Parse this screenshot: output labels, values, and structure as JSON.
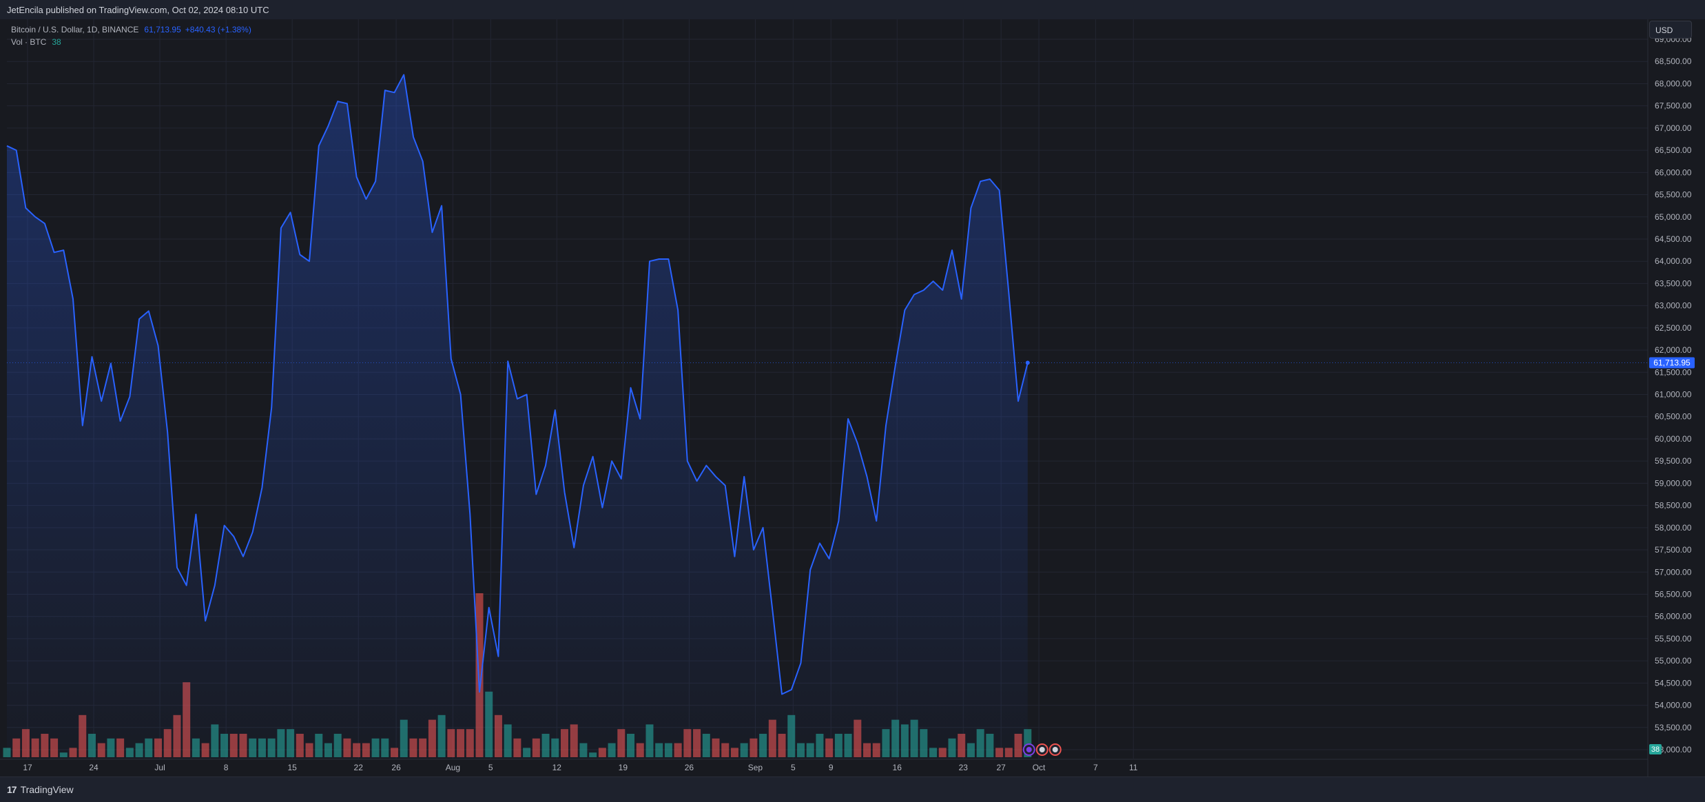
{
  "header": {
    "published": "JetEncila published on TradingView.com, Oct 02, 2024 08:10 UTC"
  },
  "legend": {
    "symbol": "Bitcoin / U.S. Dollar, 1D, BINANCE",
    "last": "61,713.95",
    "change": "+840.43 (+1.38%)",
    "volume_label": "Vol · BTC",
    "volume_value": "38"
  },
  "currency": "USD",
  "brand": {
    "logo": "17",
    "name": "TradingView"
  },
  "price_label": "61,713.95",
  "volume_badge": "38",
  "colors": {
    "line": "#2962ff",
    "up": "#26a69a",
    "down": "#ef5350",
    "bg": "#181a20"
  },
  "chart_data": {
    "type": "line",
    "y_ticks": [
      "53,000.00",
      "53,500.00",
      "54,000.00",
      "54,500.00",
      "55,000.00",
      "55,500.00",
      "56,000.00",
      "56,500.00",
      "57,000.00",
      "57,500.00",
      "58,000.00",
      "58,500.00",
      "59,000.00",
      "59,500.00",
      "60,000.00",
      "60,500.00",
      "61,000.00",
      "61,500.00",
      "62,000.00",
      "62,500.00",
      "63,000.00",
      "63,500.00",
      "64,000.00",
      "64,500.00",
      "65,000.00",
      "65,500.00",
      "66,000.00",
      "66,500.00",
      "67,000.00",
      "67,500.00",
      "68,000.00",
      "68,500.00",
      "69,000.00"
    ],
    "ylim": [
      52800,
      69500
    ],
    "x_ticks": [
      {
        "label": "17",
        "day": 0
      },
      {
        "label": "24",
        "day": 7
      },
      {
        "label": "Jul",
        "day": 14
      },
      {
        "label": "8",
        "day": 21
      },
      {
        "label": "15",
        "day": 28
      },
      {
        "label": "22",
        "day": 35
      },
      {
        "label": "26",
        "day": 39
      },
      {
        "label": "Aug",
        "day": 45
      },
      {
        "label": "5",
        "day": 49
      },
      {
        "label": "12",
        "day": 56
      },
      {
        "label": "19",
        "day": 63
      },
      {
        "label": "26",
        "day": 70
      },
      {
        "label": "Sep",
        "day": 77
      },
      {
        "label": "5",
        "day": 81
      },
      {
        "label": "9",
        "day": 85
      },
      {
        "label": "16",
        "day": 92
      },
      {
        "label": "23",
        "day": 99
      },
      {
        "label": "27",
        "day": 103
      },
      {
        "label": "Oct",
        "day": 107
      },
      {
        "label": "7",
        "day": 113
      },
      {
        "label": "11",
        "day": 117
      }
    ],
    "series": [
      {
        "values": [
          66600,
          66500,
          65200,
          65000,
          64850,
          64200,
          64250,
          63150,
          60300,
          61850,
          60850,
          61700,
          60400,
          60950,
          62700,
          62880,
          62100,
          60150,
          57100,
          56700,
          58300,
          55900,
          56700,
          58050,
          57800,
          57350,
          57900,
          58900,
          60700,
          64750,
          65100,
          64150,
          64000,
          66600,
          67050,
          67600,
          67550,
          65900,
          65400,
          65800,
          67850,
          67800,
          68200,
          66800,
          66250,
          64650,
          65250,
          61800,
          61000,
          58300,
          54300,
          56200,
          55100,
          61750,
          60900,
          61000,
          58750,
          59400,
          60650,
          58800,
          57550,
          58950,
          59600,
          58450,
          59500,
          59100,
          61150,
          60450,
          64000,
          64050,
          64050,
          62900,
          59500,
          59050,
          59400,
          59150,
          58950,
          57350,
          59150,
          57500,
          58000,
          56150,
          54250,
          54350,
          54950,
          57050,
          57650,
          57300,
          58150,
          60450,
          59900,
          59150,
          58150,
          60300,
          61650,
          62900,
          63250,
          63350,
          63550,
          63350,
          64250,
          63150,
          65200,
          65800,
          65850,
          65600,
          63300,
          60850,
          61713.95
        ],
        "volume": [
          2,
          4,
          6,
          4,
          5,
          4,
          1,
          2,
          9,
          5,
          3,
          4,
          4,
          2,
          3,
          4,
          4,
          6,
          9,
          16,
          4,
          3,
          7,
          5,
          5,
          5,
          4,
          4,
          4,
          6,
          6,
          5,
          3,
          5,
          3,
          5,
          4,
          3,
          3,
          4,
          4,
          2,
          8,
          4,
          4,
          8,
          9,
          6,
          6,
          6,
          35,
          14,
          9,
          7,
          4,
          2,
          4,
          5,
          4,
          6,
          7,
          3,
          1,
          2,
          3,
          6,
          5,
          3,
          7,
          3,
          3,
          3,
          6,
          6,
          5,
          4,
          3,
          2,
          3,
          4,
          5,
          8,
          5,
          9,
          3,
          3,
          5,
          4,
          5,
          5,
          8,
          3,
          3,
          6,
          8,
          7,
          8,
          6,
          2,
          2,
          4,
          5,
          3,
          6,
          5,
          2,
          2,
          5,
          6
        ]
      }
    ]
  }
}
